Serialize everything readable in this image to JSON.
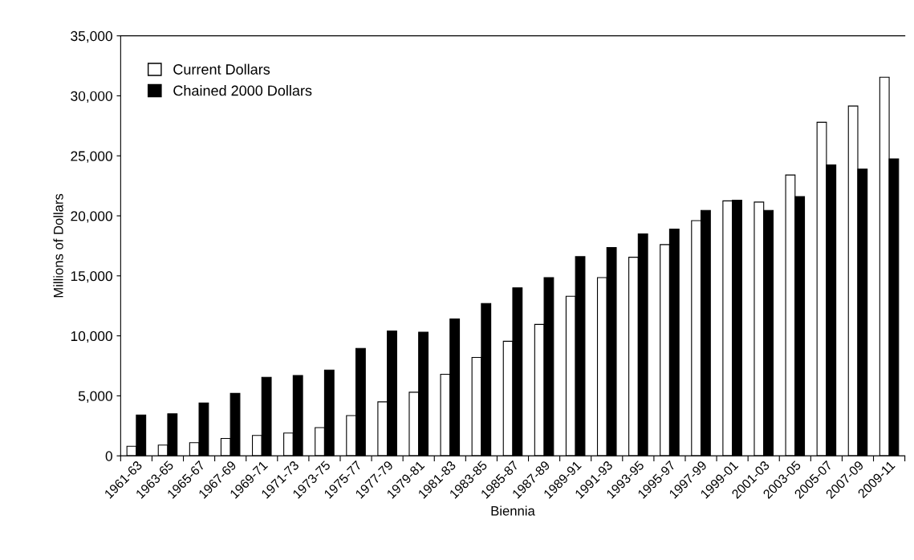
{
  "chart_data": {
    "type": "bar",
    "xlabel": "Biennia",
    "ylabel": "Millions of Dollars",
    "categories": [
      "1961-63",
      "1963-65",
      "1965-67",
      "1967-69",
      "1969-71",
      "1971-73",
      "1973-75",
      "1975-77",
      "1977-79",
      "1979-81",
      "1981-83",
      "1983-85",
      "1985-87",
      "1987-89",
      "1989-91",
      "1991-93",
      "1993-95",
      "1995-97",
      "1997-99",
      "1999-01",
      "2001-03",
      "2003-05",
      "2005-07",
      "2007-09",
      "2009-11"
    ],
    "series": [
      {
        "name": "Current Dollars",
        "color": "#ffffff",
        "values": [
          800,
          900,
          1100,
          1450,
          1700,
          1900,
          2350,
          3350,
          4500,
          5300,
          6800,
          8200,
          9550,
          10950,
          13300,
          14850,
          16550,
          17600,
          19600,
          21250,
          21150,
          23400,
          27800,
          29150,
          31550
        ]
      },
      {
        "name": "Chained 2000 Dollars",
        "color": "#000000",
        "values": [
          3400,
          3500,
          4400,
          5200,
          6550,
          6700,
          7150,
          8950,
          10400,
          10300,
          11400,
          12700,
          14000,
          14850,
          16600,
          17350,
          18500,
          18900,
          20450,
          21300,
          20450,
          21600,
          24250,
          23900,
          24750
        ]
      }
    ],
    "ylim": [
      0,
      35000
    ],
    "yticks": [
      0,
      {
        "value": 5000,
        "label": "5,000"
      },
      {
        "value": 10000,
        "label": "10,000"
      },
      {
        "value": 15000,
        "label": "15,000"
      },
      {
        "value": 20000,
        "label": "20,000"
      },
      {
        "value": 25000,
        "label": "25,000"
      },
      {
        "value": 30000,
        "label": "30,000"
      },
      {
        "value": 35000,
        "label": "35,000"
      }
    ],
    "grid": false,
    "legend": "top left"
  }
}
